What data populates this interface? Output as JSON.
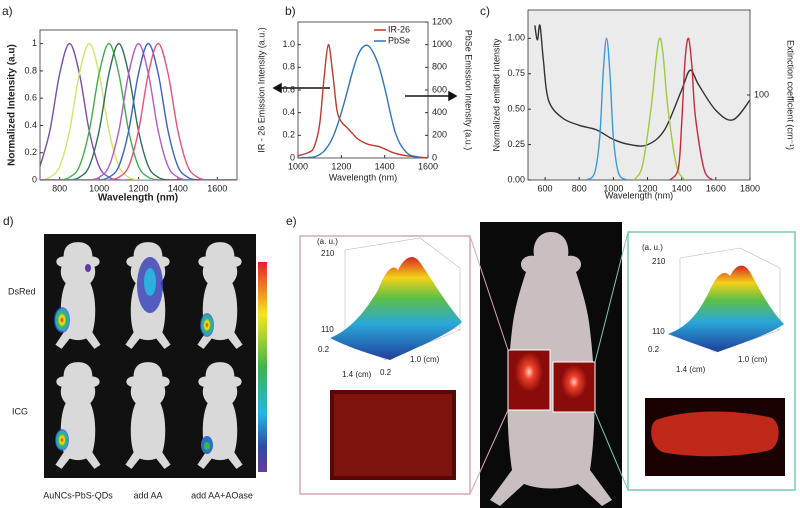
{
  "chart_data": [
    {
      "type": "line",
      "label": "a)",
      "xlabel": "Wavelength (nm)",
      "ylabel": "Normalized Intensity (a.u)",
      "xlim": [
        700,
        1700
      ],
      "ylim": [
        0,
        1.1
      ],
      "xticks": [
        800,
        1000,
        1200,
        1400,
        1600
      ],
      "yticks": [
        0,
        0.2,
        0.4,
        0.6,
        0.8,
        1
      ],
      "x": [
        700,
        750,
        800,
        850,
        900,
        950,
        1000,
        1050,
        1100,
        1150,
        1200,
        1250,
        1300,
        1350,
        1400,
        1450,
        1500,
        1550,
        1600,
        1650,
        1700
      ],
      "series": [
        {
          "color": "#7a4ea3",
          "values": [
            0.1,
            0.36,
            0.78,
            1,
            0.78,
            0.36,
            0.1,
            0.02,
            0,
            0,
            0,
            0,
            0,
            0,
            0,
            0,
            0,
            0,
            0,
            0,
            0
          ]
        },
        {
          "color": "#d6e36a",
          "values": [
            0,
            0.02,
            0.1,
            0.36,
            0.78,
            1,
            0.78,
            0.36,
            0.1,
            0.02,
            0,
            0,
            0,
            0,
            0,
            0,
            0,
            0,
            0,
            0,
            0
          ]
        },
        {
          "color": "#3fae49",
          "values": [
            0,
            0,
            0,
            0.02,
            0.1,
            0.36,
            0.78,
            1,
            0.78,
            0.36,
            0.1,
            0.02,
            0,
            0,
            0,
            0,
            0,
            0,
            0,
            0,
            0
          ]
        },
        {
          "color": "#2f6f5a",
          "values": [
            0,
            0,
            0,
            0,
            0.02,
            0.1,
            0.36,
            0.78,
            1,
            0.78,
            0.36,
            0.1,
            0.02,
            0,
            0,
            0,
            0,
            0,
            0,
            0,
            0
          ]
        },
        {
          "color": "#b05cc6",
          "values": [
            0,
            0,
            0,
            0,
            0,
            0,
            0.02,
            0.1,
            0.36,
            0.78,
            1,
            0.78,
            0.36,
            0.1,
            0.02,
            0,
            0,
            0,
            0,
            0,
            0
          ]
        },
        {
          "color": "#3a5fcd",
          "values": [
            0,
            0,
            0,
            0,
            0,
            0,
            0,
            0.02,
            0.1,
            0.36,
            0.78,
            1,
            0.78,
            0.36,
            0.1,
            0.02,
            0,
            0,
            0,
            0,
            0
          ]
        },
        {
          "color": "#e8507a",
          "values": [
            0,
            0,
            0,
            0,
            0,
            0,
            0,
            0,
            0.02,
            0.1,
            0.36,
            0.78,
            1,
            0.78,
            0.36,
            0.1,
            0.02,
            0,
            0,
            0,
            0
          ]
        }
      ]
    },
    {
      "type": "line",
      "label": "b)",
      "xlabel": "Wavelength (nm)",
      "ylabel": "IR - 26 Emission Intensity (a.u.)",
      "y2label": "PbSe Emission Intensity (a.u.)",
      "xlim": [
        1000,
        1600
      ],
      "ylim": [
        0,
        1.2
      ],
      "y2lim": [
        0,
        1200
      ],
      "xticks": [
        1000,
        1200,
        1400,
        1600
      ],
      "yticks": [
        0,
        0.2,
        0.4,
        0.6,
        0.8,
        {
          "value": 1,
          "label": "1.0"
        }
      ],
      "y2ticks": [
        0,
        200,
        400,
        600,
        800,
        1000,
        1200
      ],
      "x": [
        1000,
        1050,
        1075,
        1100,
        1120,
        1140,
        1160,
        1180,
        1200,
        1225,
        1250,
        1275,
        1300,
        1325,
        1350,
        1375,
        1400,
        1450,
        1500,
        1550,
        1600
      ],
      "series": [
        {
          "name": "IR-26",
          "color": "#c0392b",
          "values": [
            0.02,
            0.05,
            0.1,
            0.3,
            0.7,
            1.0,
            0.75,
            0.42,
            0.32,
            0.27,
            0.22,
            0.17,
            0.14,
            0.12,
            0.11,
            0.1,
            0.08,
            0.04,
            0.02,
            0.01,
            0
          ]
        },
        {
          "name": "PbSe",
          "color": "#2e75b6",
          "axis": "y2",
          "values": [
            0,
            5,
            10,
            30,
            60,
            110,
            180,
            280,
            400,
            570,
            750,
            900,
            980,
            990,
            920,
            800,
            620,
            220,
            50,
            10,
            0
          ]
        }
      ]
    },
    {
      "type": "line",
      "label": "c)",
      "xlabel": "Wavelength (nm)",
      "ylabel": "Normalized emitted intensity",
      "y2label": "Extinction coefficient (cm⁻¹)",
      "background": "#ebebeb",
      "xlim": [
        500,
        1800
      ],
      "ylim": [
        0,
        1.2
      ],
      "y2lim": [
        10,
        1000
      ],
      "y2scale": "log",
      "xticks": [
        600,
        800,
        1000,
        1200,
        1400,
        1600,
        1800
      ],
      "yticks": [
        {
          "value": 0,
          "label": "0.00"
        },
        {
          "value": 0.25,
          "label": "0.25"
        },
        {
          "value": 0.5,
          "label": "0.50"
        },
        {
          "value": 0.75,
          "label": "0.75"
        },
        {
          "value": 1,
          "label": "1.00"
        }
      ],
      "y2ticks": [
        100
      ],
      "series": [
        {
          "color": "#333333",
          "axis": "y2",
          "x": [
            540,
            555,
            570,
            590,
            620,
            700,
            800,
            900,
            1000,
            1100,
            1200,
            1300,
            1400,
            1450,
            1500,
            1600,
            1700,
            1800
          ],
          "values": [
            660,
            444,
            660,
            257,
            87,
            54,
            44,
            39,
            30,
            26,
            26,
            39,
            115,
            196,
            131,
            66,
            51,
            87
          ]
        },
        {
          "color": "#3a9ad9",
          "x": [
            840,
            890,
            920,
            940,
            960,
            980,
            1000,
            1030,
            1080
          ],
          "values": [
            0,
            0.05,
            0.3,
            0.75,
            1.0,
            0.75,
            0.3,
            0.05,
            0
          ]
        },
        {
          "color": "#9ccb3b",
          "x": [
            1120,
            1170,
            1220,
            1250,
            1270,
            1290,
            1320,
            1370,
            1420
          ],
          "values": [
            0,
            0.1,
            0.5,
            0.85,
            1.0,
            0.9,
            0.5,
            0.1,
            0
          ]
        },
        {
          "color": "#c9283a",
          "x": [
            1330,
            1380,
            1400,
            1420,
            1440,
            1460,
            1480,
            1530,
            1580
          ],
          "values": [
            0,
            0.08,
            0.4,
            0.85,
            1.0,
            0.8,
            0.45,
            0.08,
            0
          ]
        }
      ]
    }
  ],
  "panel_d": {
    "label": "d)",
    "rows": [
      "DsRed",
      "ICG"
    ],
    "columns": [
      "AuNCs-PbS-QDs",
      "add AA",
      "add AA+AOase"
    ]
  },
  "panel_e": {
    "label": "e)",
    "left_plot": {
      "unit": "(a. u.)",
      "z_top": "210",
      "z_bottom": "110",
      "x_start": "0.2",
      "x_axis": "1.4 (cm)",
      "y_start": "0.2",
      "y_axis": "1.0 (cm)"
    },
    "right_plot": {
      "unit": "(a. u.)",
      "z_top": "210",
      "z_bottom": "110",
      "x_start": "0.2",
      "x_axis": "1.4 (cm)",
      "y_axis": "1.0 (cm)"
    }
  }
}
